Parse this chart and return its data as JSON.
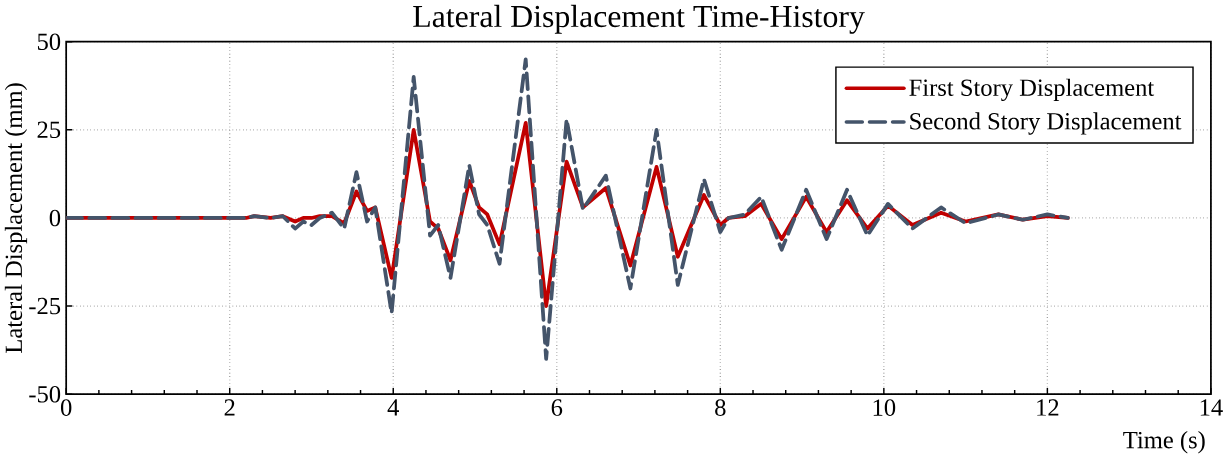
{
  "chart_data": {
    "type": "line",
    "title": "Lateral Displacement Time-History",
    "xlabel": "Time (s)",
    "ylabel": "Lateral Displacement  (mm)",
    "xlim": [
      0,
      14
    ],
    "xticks": [
      0,
      2,
      4,
      6,
      8,
      10,
      12,
      14
    ],
    "ylim": [
      -50,
      50
    ],
    "yticks": [
      -50,
      -25,
      0,
      25,
      50
    ],
    "grid": true,
    "legend": "top right",
    "marker": "none",
    "x": [
      0,
      1,
      2,
      2.2,
      2.3,
      2.5,
      2.65,
      2.8,
      2.9,
      3.0,
      3.1,
      3.25,
      3.4,
      3.55,
      3.68,
      3.78,
      3.98,
      4.25,
      4.45,
      4.55,
      4.7,
      4.93,
      5.05,
      5.15,
      5.3,
      5.62,
      5.87,
      6.12,
      6.32,
      6.6,
      6.9,
      7.22,
      7.48,
      7.8,
      8.0,
      8.1,
      8.3,
      8.5,
      8.75,
      9.05,
      9.3,
      9.55,
      9.8,
      10.05,
      10.35,
      10.7,
      11.0,
      11.4,
      11.7,
      12.0,
      12.25
    ],
    "series": [
      {
        "name": "First Story Displacement",
        "color": "#c00000",
        "line_style": "solid",
        "values": [
          0,
          0,
          0,
          0,
          0.5,
          0,
          0.5,
          -1,
          0,
          0,
          0.5,
          0.5,
          -1.5,
          7.5,
          2,
          3,
          -17,
          25,
          -1,
          -3,
          -12,
          10.5,
          3,
          1,
          -7.5,
          27,
          -25,
          16,
          3,
          8.5,
          -13.5,
          14.5,
          -11,
          6.5,
          -2,
          0,
          0.5,
          4,
          -6,
          6,
          -4,
          5,
          -3,
          3.5,
          -2,
          1.5,
          -1,
          1,
          -0.5,
          0.5,
          0
        ]
      },
      {
        "name": "Second Story Displacement",
        "color": "#44546a",
        "line_style": "dashed",
        "values": [
          0,
          0,
          0,
          0,
          0.5,
          0,
          0.5,
          -3,
          -1,
          -2,
          0,
          1.5,
          -3,
          13,
          -1,
          3,
          -27,
          40,
          -5,
          -2,
          -17,
          15,
          1,
          -2,
          -13,
          45,
          -40,
          28,
          2.5,
          12,
          -20,
          25,
          -19,
          11,
          -4,
          0,
          1,
          6,
          -9,
          8,
          -6,
          8,
          -5,
          4,
          -3,
          3,
          -1.5,
          1,
          -0.5,
          1,
          0
        ]
      }
    ]
  }
}
